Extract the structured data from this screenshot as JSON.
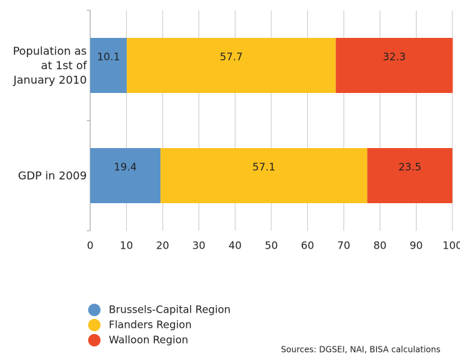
{
  "chart_data": {
    "type": "stacked_barh",
    "categories": [
      "Population as\nat 1st of\nJanuary 2010",
      "GDP in 2009"
    ],
    "series": [
      {
        "name": "Brussels-Capital Region",
        "color": "#5b93c9",
        "values": [
          10.1,
          19.4
        ]
      },
      {
        "name": "Flanders Region",
        "color": "#fcc31e",
        "values": [
          57.7,
          57.1
        ]
      },
      {
        "name": "Walloon Region",
        "color": "#ec4b2a",
        "values": [
          32.3,
          23.5
        ]
      }
    ],
    "xlim": [
      0,
      100
    ],
    "xticks": [
      0,
      10,
      20,
      30,
      40,
      50,
      60,
      70,
      80,
      90,
      100
    ],
    "grid": true,
    "source": "Sources: DGSEI, NAI, BISA calculations"
  }
}
